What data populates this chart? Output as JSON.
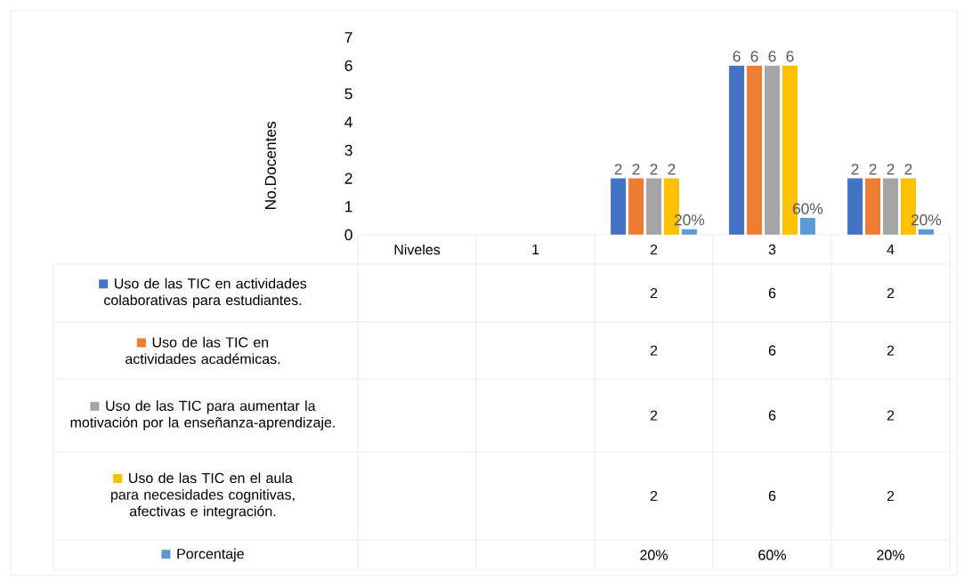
{
  "chart_data": {
    "type": "bar",
    "ylabel": "No.Docentes",
    "categories": [
      "Niveles",
      "1",
      "2",
      "3",
      "4"
    ],
    "ylim": [
      0,
      7
    ],
    "yticks": [
      0,
      1,
      2,
      3,
      4,
      5,
      6,
      7
    ],
    "legend": "bottom",
    "series": [
      {
        "name": "Uso de las TIC en actividades colaborativas para estudiantes.",
        "color": "#4472c4",
        "values": [
          null,
          null,
          2,
          6,
          2
        ],
        "value_labels": [
          null,
          null,
          "2",
          "6",
          "2"
        ]
      },
      {
        "name": "Uso de las TIC en actividades académicas.",
        "color": "#ed7d31",
        "values": [
          null,
          null,
          2,
          6,
          2
        ],
        "value_labels": [
          null,
          null,
          "2",
          "6",
          "2"
        ]
      },
      {
        "name": "Uso de las TIC para aumentar la motivación por la enseñanza-aprendizaje.",
        "color": "#a5a5a5",
        "values": [
          null,
          null,
          2,
          6,
          2
        ],
        "value_labels": [
          null,
          null,
          "2",
          "6",
          "2"
        ]
      },
      {
        "name": "Uso de las TIC en el aula para necesidades cognitivas, afectivas e integración.",
        "color": "#ffc000",
        "values": [
          null,
          null,
          2,
          6,
          2
        ],
        "value_labels": [
          null,
          null,
          "2",
          "6",
          "2"
        ]
      },
      {
        "name": "Porcentaje",
        "color": "#5b9bd5",
        "values": [
          null,
          null,
          0.2,
          0.6,
          0.2
        ],
        "value_labels": [
          null,
          null,
          "20%",
          "60%",
          "20%"
        ]
      }
    ]
  }
}
